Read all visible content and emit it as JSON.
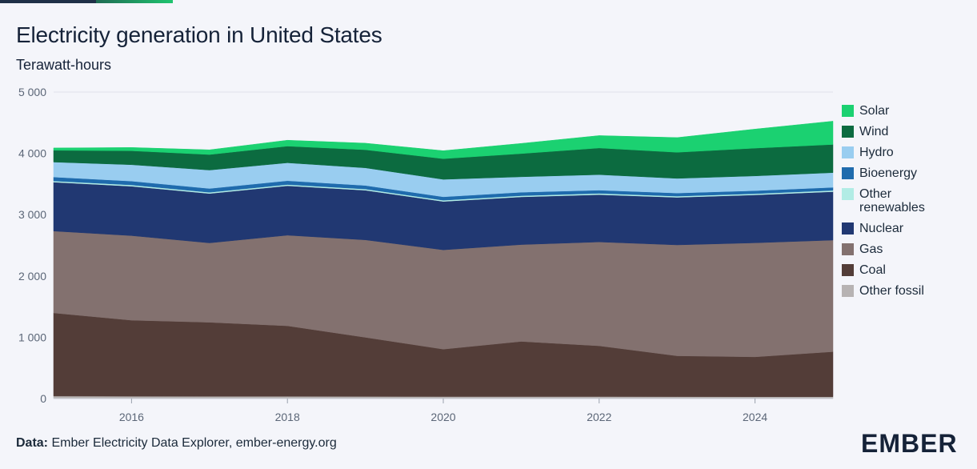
{
  "header": {
    "title": "Electricity generation in United States",
    "subtitle": "Terawatt-hours"
  },
  "footer": {
    "source_label": "Data:",
    "source_text": "Ember Electricity Data Explorer, ember-energy.org",
    "logo_text": "EMBER"
  },
  "chart_data": {
    "type": "area",
    "stacked": true,
    "title": "Electricity generation in United States",
    "subtitle": "Terawatt-hours",
    "xlabel": "",
    "ylabel": "Terawatt-hours",
    "x": [
      2015,
      2016,
      2017,
      2018,
      2019,
      2020,
      2021,
      2022,
      2023,
      2024,
      2025
    ],
    "x_ticks": [
      2016,
      2018,
      2020,
      2022,
      2024
    ],
    "x_tick_labels": [
      "2016",
      "2018",
      "2020",
      "2022",
      "2024"
    ],
    "xlim": [
      2015,
      2025
    ],
    "ylim": [
      0,
      5000
    ],
    "y_ticks": [
      0,
      1000,
      2000,
      3000,
      4000,
      5000
    ],
    "y_tick_labels": [
      "0",
      "1 000",
      "2 000",
      "3 000",
      "4 000",
      "5 000"
    ],
    "grid": true,
    "legend_position": "right",
    "series": [
      {
        "name": "Other fossil",
        "color": "#b7b3b3",
        "values": [
          40,
          38,
          36,
          36,
          34,
          32,
          33,
          32,
          31,
          30,
          30
        ]
      },
      {
        "name": "Coal",
        "color": "#533d38",
        "values": [
          1357,
          1240,
          1208,
          1151,
          965,
          773,
          899,
          828,
          666,
          650,
          735
        ]
      },
      {
        "name": "Gas",
        "color": "#83716f",
        "values": [
          1335,
          1380,
          1295,
          1477,
          1590,
          1620,
          1580,
          1695,
          1810,
          1860,
          1820
        ]
      },
      {
        "name": "Nuclear",
        "color": "#213872",
        "values": [
          798,
          806,
          805,
          807,
          809,
          790,
          778,
          772,
          775,
          782,
          790
        ]
      },
      {
        "name": "Other renewables",
        "color": "#b2ece5",
        "values": [
          20,
          20,
          20,
          20,
          20,
          20,
          20,
          20,
          20,
          20,
          20
        ]
      },
      {
        "name": "Bioenergy",
        "color": "#1f6bad",
        "values": [
          64,
          63,
          63,
          62,
          58,
          56,
          55,
          53,
          50,
          50,
          50
        ]
      },
      {
        "name": "Hydro",
        "color": "#99cdf0",
        "values": [
          244,
          268,
          300,
          293,
          288,
          285,
          252,
          253,
          240,
          240,
          240
        ]
      },
      {
        "name": "Wind",
        "color": "#0c6b40",
        "values": [
          191,
          227,
          254,
          272,
          295,
          337,
          379,
          434,
          425,
          453,
          460
        ]
      },
      {
        "name": "Solar",
        "color": "#1bd171",
        "values": [
          39,
          53,
          77,
          96,
          107,
          130,
          166,
          203,
          240,
          310,
          380
        ]
      }
    ]
  },
  "legend": [
    {
      "label": "Solar",
      "color": "#1bd171"
    },
    {
      "label": "Wind",
      "color": "#0c6b40"
    },
    {
      "label": "Hydro",
      "color": "#99cdf0"
    },
    {
      "label": "Bioenergy",
      "color": "#1f6bad"
    },
    {
      "label": "Other renewables",
      "color": "#b2ece5"
    },
    {
      "label": "Nuclear",
      "color": "#213872"
    },
    {
      "label": "Gas",
      "color": "#83716f"
    },
    {
      "label": "Coal",
      "color": "#533d38"
    },
    {
      "label": "Other fossil",
      "color": "#b7b3b3"
    }
  ]
}
